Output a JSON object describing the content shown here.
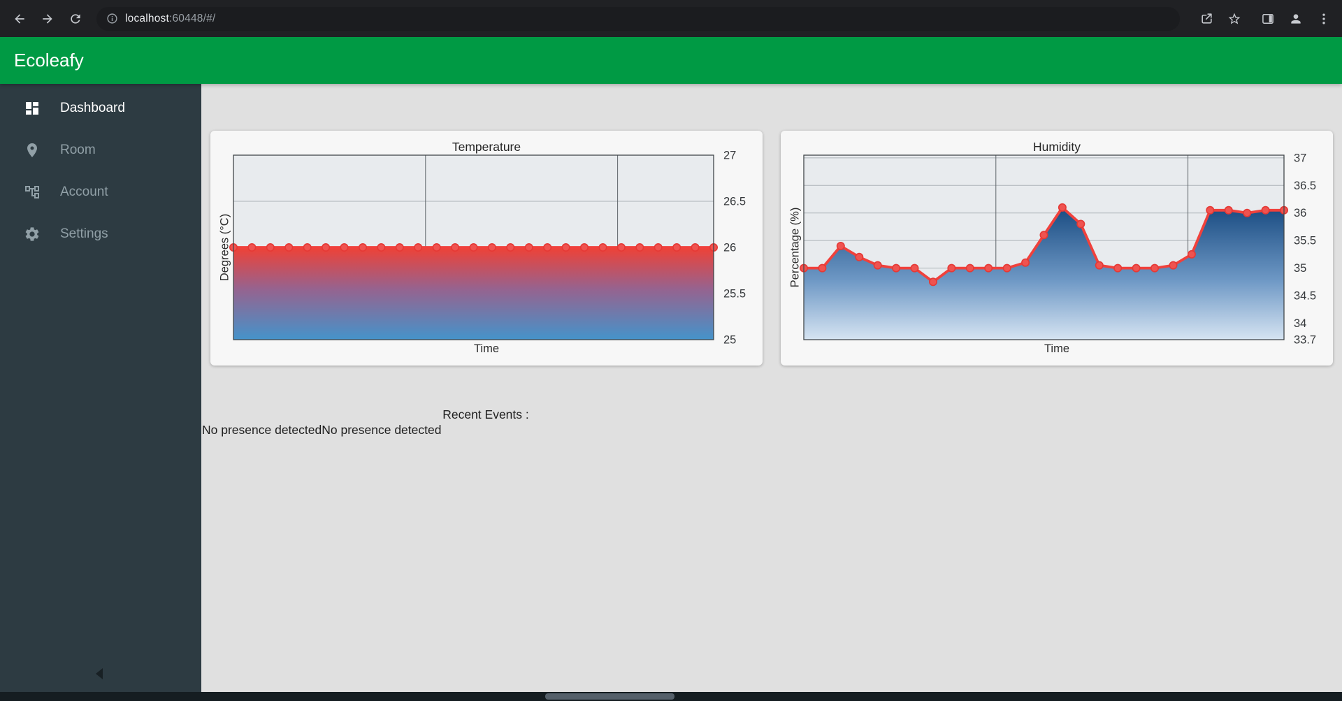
{
  "browser": {
    "url_host": "localhost",
    "url_rest": ":60448/#/"
  },
  "app_bar": {
    "title": "Ecoleafy"
  },
  "sidebar": {
    "items": [
      {
        "label": "Dashboard",
        "active": true
      },
      {
        "label": "Room",
        "active": false
      },
      {
        "label": "Account",
        "active": false
      },
      {
        "label": "Settings",
        "active": false
      }
    ]
  },
  "events": {
    "title": "Recent Events :",
    "items": [
      "No presence detected",
      "No presence detected"
    ]
  },
  "colors": {
    "app_bar_green": "#009a44",
    "sidebar_bg": "#2d3b42",
    "content_bg": "#e0e0e0",
    "card_bg": "#f7f7f7",
    "plot_bg": "#e8ebee",
    "line_red": "#f0413c"
  },
  "chart_data": [
    {
      "type": "line",
      "title": "Temperature",
      "xlabel": "Time",
      "ylabel": "Degrees (°C)",
      "ylim": [
        25,
        27
      ],
      "yticks": [
        27,
        26.5,
        26,
        25.5,
        25
      ],
      "ytick_labels": [
        "27",
        "26.5",
        "26",
        "25.5",
        "25"
      ],
      "x_gridlines": [
        0.4,
        0.8
      ],
      "grid": true,
      "legend": false,
      "values": [
        26,
        26,
        26,
        26,
        26,
        26,
        26,
        26,
        26,
        26,
        26,
        26,
        26,
        26,
        26,
        26,
        26,
        26,
        26,
        26,
        26,
        26,
        26,
        26,
        26,
        26,
        26
      ],
      "colors": {
        "line": "#f0413c",
        "marker_fill": "#ef5350",
        "marker_stroke": "#e53935",
        "border": "#41464a",
        "hgrid": "#adb3b8",
        "vgrid": "#60666b",
        "fill_stops": [
          {
            "offset": "0%",
            "color": "#ef4136"
          },
          {
            "offset": "45%",
            "color": "#96638f"
          },
          {
            "offset": "100%",
            "color": "#4593ca"
          }
        ]
      }
    },
    {
      "type": "line",
      "title": "Humidity",
      "xlabel": "Time",
      "ylabel": "Percentage (%)",
      "ylim": [
        33.7,
        37.05
      ],
      "yticks": [
        37,
        36.5,
        36,
        35.5,
        35,
        34.5,
        34,
        33.7
      ],
      "ytick_labels": [
        "37",
        "36.5",
        "36",
        "35.5",
        "35",
        "34.5",
        "34",
        "33.7"
      ],
      "x_gridlines": [
        0.4,
        0.8
      ],
      "grid": true,
      "legend": false,
      "values": [
        35,
        35,
        35.4,
        35.2,
        35.05,
        35,
        35,
        34.75,
        35,
        35,
        35,
        35,
        35.1,
        35.6,
        36.1,
        35.8,
        35.05,
        35,
        35,
        35,
        35.05,
        35.25,
        36.05,
        36.05,
        36,
        36.05,
        36.05
      ],
      "colors": {
        "line": "#f0413c",
        "marker_fill": "#ef5350",
        "marker_stroke": "#e53935",
        "border": "#41464a",
        "hgrid": "#adb3b8",
        "vgrid": "#60666b",
        "fill_stops": [
          {
            "offset": "0%",
            "color": "#1a4c82"
          },
          {
            "offset": "55%",
            "color": "#6e98c5"
          },
          {
            "offset": "100%",
            "color": "#d6e4f2"
          }
        ]
      }
    }
  ]
}
